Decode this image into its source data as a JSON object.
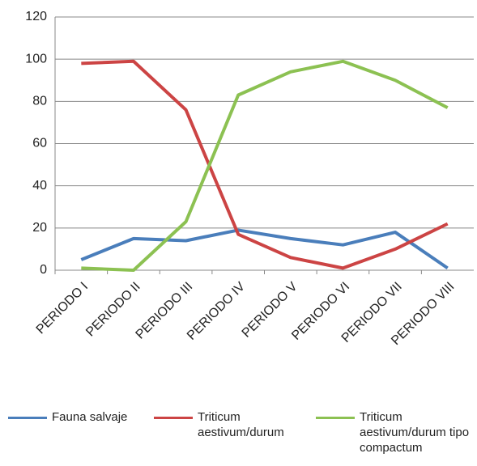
{
  "chart_data": {
    "type": "line",
    "categories": [
      "PERIODO I",
      "PERIODO II",
      "PERIODO III",
      "PERIODO IV",
      "PERIODO V",
      "PERIODO VI",
      "PERIODO VII",
      "PERIODO VIII"
    ],
    "series": [
      {
        "name": "Fauna salvaje",
        "color": "#4a7ebb",
        "values": [
          5,
          15,
          14,
          19,
          15,
          12,
          18,
          1
        ]
      },
      {
        "name": "Triticum aestivum/durum",
        "color": "#cc4444",
        "values": [
          98,
          99,
          76,
          17,
          6,
          1,
          10,
          22
        ]
      },
      {
        "name": "Triticum aestivum/durum tipo compactum",
        "color": "#8cc152",
        "values": [
          1,
          0,
          23,
          83,
          94,
          99,
          90,
          77
        ]
      }
    ],
    "ylim": [
      0,
      120
    ],
    "yticks": [
      0,
      20,
      40,
      60,
      80,
      100,
      120
    ],
    "grid": true,
    "legend": "bottom"
  }
}
